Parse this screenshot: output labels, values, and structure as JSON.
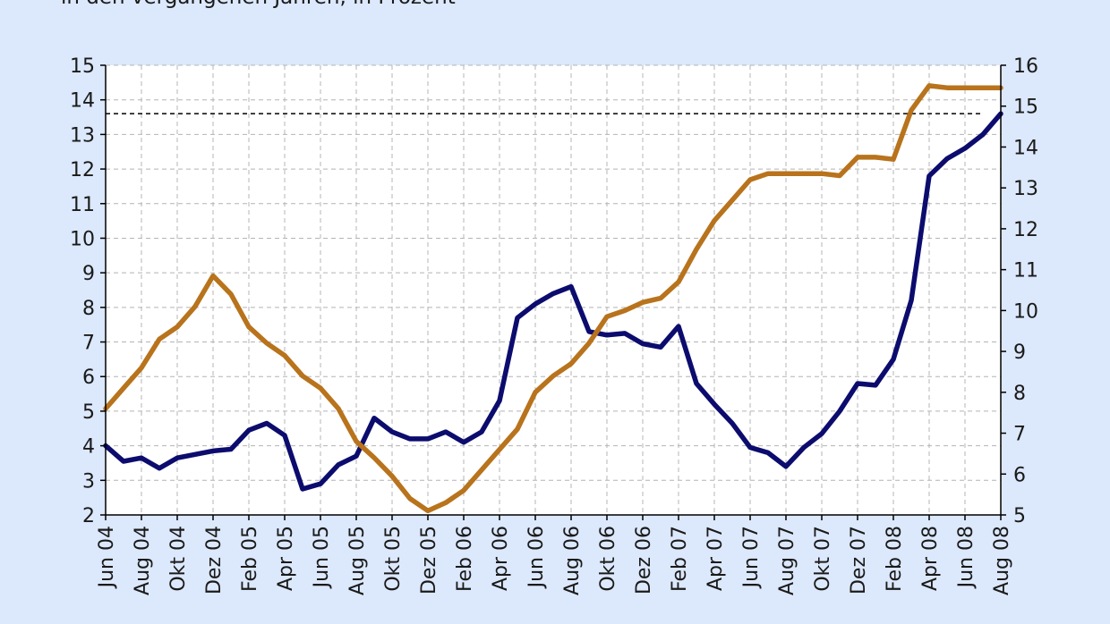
{
  "chart_data": {
    "type": "line",
    "subtitle": "in den vergangenen Jahren, in Prozent",
    "x": [
      "Jun 04",
      "Jul 04",
      "Aug 04",
      "Sep 04",
      "Okt 04",
      "Nov 04",
      "Dez 04",
      "Jan 05",
      "Feb 05",
      "Mär 05",
      "Apr 05",
      "Mai 05",
      "Jun 05",
      "Jul 05",
      "Aug 05",
      "Sep 05",
      "Okt 05",
      "Nov 05",
      "Dez 05",
      "Jan 06",
      "Feb 06",
      "Mär 06",
      "Apr 06",
      "Mai 06",
      "Jun 06",
      "Jul 06",
      "Aug 06",
      "Sep 06",
      "Okt 06",
      "Nov 06",
      "Dez 06",
      "Jan 07",
      "Feb 07",
      "Mär 07",
      "Apr 07",
      "Mai 07",
      "Jun 07",
      "Jul 07",
      "Aug 07",
      "Sep 07",
      "Okt 07",
      "Nov 07",
      "Dez 07",
      "Jan 08",
      "Feb 08",
      "Mär 08",
      "Apr 08",
      "Mai 08",
      "Jun 08",
      "Jul 08",
      "Aug 08"
    ],
    "x_tick_labels": [
      "Jun 04",
      "Aug 04",
      "Okt 04",
      "Dez 04",
      "Feb 05",
      "Apr 05",
      "Jun 05",
      "Aug 05",
      "Okt 05",
      "Dez 05",
      "Feb 06",
      "Apr 06",
      "Jun 06",
      "Aug 06",
      "Okt 06",
      "Dez 06",
      "Feb 07",
      "Apr 07",
      "Jun 07",
      "Aug 07",
      "Okt 07",
      "Dez 07",
      "Feb 08",
      "Apr 08",
      "Jun 08",
      "Aug 08"
    ],
    "y_left": {
      "lim": [
        2,
        15
      ],
      "ticks": [
        2,
        3,
        4,
        5,
        6,
        7,
        8,
        9,
        10,
        11,
        12,
        13,
        14,
        15
      ]
    },
    "y_right": {
      "lim": [
        5,
        16
      ],
      "ticks": [
        5,
        6,
        7,
        8,
        9,
        10,
        11,
        12,
        13,
        14,
        15,
        16
      ]
    },
    "reference_line": {
      "axis": "left",
      "value": 13.6,
      "style": "dashed"
    },
    "grid": true,
    "series": [
      {
        "axis": "left",
        "color": "#0c0c6e",
        "values": [
          4.0,
          3.55,
          3.65,
          3.35,
          3.65,
          3.75,
          3.85,
          3.9,
          4.45,
          4.65,
          4.3,
          2.75,
          2.9,
          3.45,
          3.7,
          4.8,
          4.4,
          4.2,
          4.2,
          4.4,
          4.1,
          4.4,
          5.3,
          7.7,
          8.1,
          8.4,
          8.6,
          7.3,
          7.2,
          7.25,
          6.95,
          6.85,
          7.45,
          5.8,
          5.2,
          4.65,
          3.95,
          3.8,
          3.4,
          3.95,
          4.35,
          5.0,
          5.8,
          5.75,
          6.5,
          8.2,
          11.8,
          12.3,
          12.6,
          13.0,
          13.6
        ]
      },
      {
        "axis": "right",
        "color": "#b8731c",
        "values": [
          7.6,
          8.1,
          8.6,
          9.3,
          9.6,
          10.1,
          10.85,
          10.4,
          9.6,
          9.2,
          8.9,
          8.4,
          8.1,
          7.6,
          6.8,
          6.4,
          5.95,
          5.4,
          5.1,
          5.3,
          5.6,
          6.1,
          6.6,
          7.1,
          8.0,
          8.4,
          8.7,
          9.2,
          9.85,
          10.0,
          10.2,
          10.3,
          10.7,
          11.5,
          12.2,
          12.7,
          13.2,
          13.35,
          13.35,
          13.35,
          13.35,
          13.3,
          13.75,
          13.75,
          13.7,
          14.9,
          15.5,
          15.45,
          15.45,
          15.45,
          15.45
        ]
      }
    ]
  }
}
